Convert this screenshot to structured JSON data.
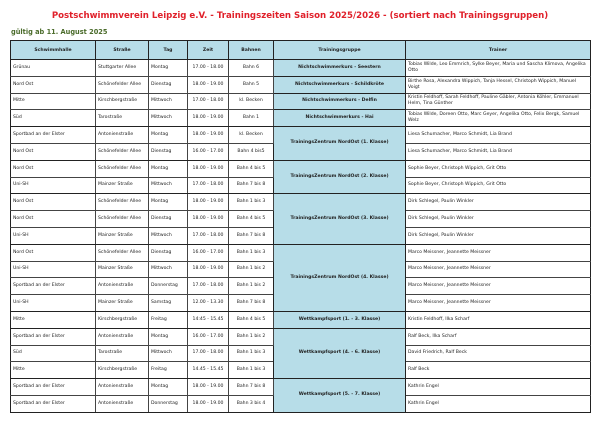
{
  "title": "Postschwimmverein Leipzig e.V. - Trainingszeiten Saison 2025/2026  - (sortiert nach Trainingsgruppen)",
  "subtitle": "gültig ab 11. August 2025",
  "colors": {
    "title": "#e0202a",
    "subtitle": "#4a6b2a",
    "header_bg": "#b7dde8",
    "group_bg": "#b7dde8"
  },
  "columns": [
    "Schwimmhalle",
    "Straße",
    "Tag",
    "Zeit",
    "Bahnen",
    "Trainingsgruppe",
    "Trainer"
  ],
  "groups": [
    {
      "name": "",
      "rows": [
        {
          "halle": "Grünau",
          "strasse": "Stuttgarter Allee",
          "tag": "Montag",
          "zeit": "17.00 - 18.00",
          "bahnen": "Bahn 6",
          "gruppe": "Nichtschwimmerkurs - Seestern",
          "trainer": "Tobias Wilde, Leo Emmrich, Sylke Beyer, Maria und Sascha Klimova, Angelika Otto"
        },
        {
          "halle": "Nord Ost",
          "strasse": "Schönefelder Allee",
          "tag": "Dienstag",
          "zeit": "18.00 - 19.00",
          "bahnen": "Bahn 5",
          "gruppe": "Nichtschwimmerkurs - Schildkröte",
          "trainer": "Birthe Rosa, Alexandra Wippich, Tanja Hessel, Christoph Wippich, Manuel Voigt"
        },
        {
          "halle": "Mitte",
          "strasse": "Kirschbergstraße",
          "tag": "Mittwoch",
          "zeit": "17.00 - 18.00",
          "bahnen": "kl. Becken",
          "gruppe": "Nichtschwimmerkurs - Delfin",
          "trainer": "Kristin Feldhoff, Sarah Feldhoff, Pauline Gäbler, Antonia Köhler, Emmanuel Helm, Tina Günther"
        },
        {
          "halle": "Süd",
          "strasse": "Tarostraße",
          "tag": "Mittwoch",
          "zeit": "18.00 - 19.00",
          "bahnen": "Bahn 1",
          "gruppe": "Nichtschwimmerkurs - Hai",
          "trainer": "Tobias Wilde, Doreen Otto, Marc Geyer, Angelika Otto, Felix Bergk, Samuel Welz"
        }
      ]
    },
    {
      "name": "TrainingsZentrum NordOst (1. Klasse)",
      "rows": [
        {
          "halle": "Sportbad an der Elster",
          "strasse": "Antonienstraße",
          "tag": "Montag",
          "zeit": "18.00 - 19.00",
          "bahnen": "kl. Becken",
          "trainer": "Liesa Schumacher, Marco Schmidt, Lia Brand"
        },
        {
          "halle": "Nord Ost",
          "strasse": "Schönefelder Allee",
          "tag": "Dienstag",
          "zeit": "16.00 - 17.00",
          "bahnen": "Bahn 4 bis5",
          "trainer": "Liesa Schumacher, Marco Schmidt, Lia Brand"
        }
      ]
    },
    {
      "name": "TrainingsZentrum NordOst (2. Klasse)",
      "rows": [
        {
          "halle": "Nord Ost",
          "strasse": "Schönefelder Allee",
          "tag": "Montag",
          "zeit": "18.00 - 19.00",
          "bahnen": "Bahn 4 bis 5",
          "trainer": "Sophie Beyer, Christoph Wippich, Grit Otto"
        },
        {
          "halle": "Uni-SH",
          "strasse": "Mainzer Straße",
          "tag": "Mittwoch",
          "zeit": "17.00 - 18.00",
          "bahnen": "Bahn 7 bis 8",
          "trainer": "Sophie Beyer, Christoph Wippich, Grit Otto"
        }
      ]
    },
    {
      "name": "TrainingsZentrum NordOst (3. Klasse)",
      "rows": [
        {
          "halle": "Nord Ost",
          "strasse": "Schönefelder Allee",
          "tag": "Montag",
          "zeit": "18.00 - 19.00",
          "bahnen": "Bahn 1 bis 3",
          "trainer": "Dirk Schlegel, Paulin Winkler"
        },
        {
          "halle": "Nord Ost",
          "strasse": "Schönefelder Allee",
          "tag": "Dienstag",
          "zeit": "18.00 - 19.00",
          "bahnen": "Bahn 4 bis 5",
          "trainer": "Dirk Schlegel, Paulin Winkler"
        },
        {
          "halle": "Uni-SH",
          "strasse": "Mainzer Straße",
          "tag": "Mittwoch",
          "zeit": "17.00 - 18.00",
          "bahnen": "Bahn 7 bis 8",
          "trainer": "Dirk Schlegel, Paulin Winkler"
        }
      ]
    },
    {
      "name": "TrainingsZentrum NordOst (4. Klasse)",
      "rows": [
        {
          "halle": "Nord Ost",
          "strasse": "Schönefelder Allee",
          "tag": "Dienstag",
          "zeit": "16.00 - 17.00",
          "bahnen": "Bahn 1 bis 3",
          "trainer": "Marco Meissner, Jeannette Meissner"
        },
        {
          "halle": "Uni-SH",
          "strasse": "Mainzer Straße",
          "tag": "Mittwoch",
          "zeit": "18.00 - 19.00",
          "bahnen": "Bahn 1 bis 2",
          "trainer": "Marco Meissner, Jeannette Meissner"
        },
        {
          "halle": "Sportbad an der Elster",
          "strasse": "Antonienstraße",
          "tag": "Donnerstag",
          "zeit": "17.00 - 18.00",
          "bahnen": "Bahn 1 bis 2",
          "trainer": "Marco Meissner, Jeannette Meissner"
        },
        {
          "halle": "Uni-SH",
          "strasse": "Mainzer Straße",
          "tag": "Samstag",
          "zeit": "12.00 - 13.30",
          "bahnen": "Bahn 7 bis 8",
          "trainer": "Marco Meissner, Jeannette Meissner"
        }
      ]
    },
    {
      "name": "Wettkampfsport (1. - 3. Klasse)",
      "rows": [
        {
          "halle": "Mitte",
          "strasse": "Kirschbergstraße",
          "tag": "Freitag",
          "zeit": "14:45 - 15.45",
          "bahnen": "Bahn 4 bis 5",
          "trainer": "Kristin Feldhoff, Ilka Scharf"
        }
      ]
    },
    {
      "name": "Wettkampfsport (4. - 6. Klasse)",
      "rows": [
        {
          "halle": "Sportbad an der Elster",
          "strasse": "Antonienstraße",
          "tag": "Montag",
          "zeit": "16.00 - 17.00",
          "bahnen": "Bahn 1 bis 2",
          "trainer": "Ralf Beck, Ilka Scharf"
        },
        {
          "halle": "Süd",
          "strasse": "Tarostraße",
          "tag": "Mittwoch",
          "zeit": "17.00 - 18.00",
          "bahnen": "Bahn 1 bis 3",
          "trainer": "David Friedrich, Ralf Beck"
        },
        {
          "halle": "Mitte",
          "strasse": "Kirschbergstraße",
          "tag": "Freitag",
          "zeit": "14.45 - 15.45",
          "bahnen": "Bahn 1 bis 3",
          "trainer": "Ralf Beck"
        }
      ]
    },
    {
      "name": "Wettkampfsport (5. - 7. Klasse)",
      "rows": [
        {
          "halle": "Sportbad an der Elster",
          "strasse": "Antonienstraße",
          "tag": "Montag",
          "zeit": "18.00 - 19.00",
          "bahnen": "Bahn 7 bis 8",
          "trainer": "Kathrin Engel"
        },
        {
          "halle": "Sportbad an der Elster",
          "strasse": "Antonienstraße",
          "tag": "Donnerstag",
          "zeit": "18.00 - 19.00",
          "bahnen": "Bahn 3 bis 4",
          "trainer": "Kathrin Engel"
        }
      ]
    }
  ]
}
